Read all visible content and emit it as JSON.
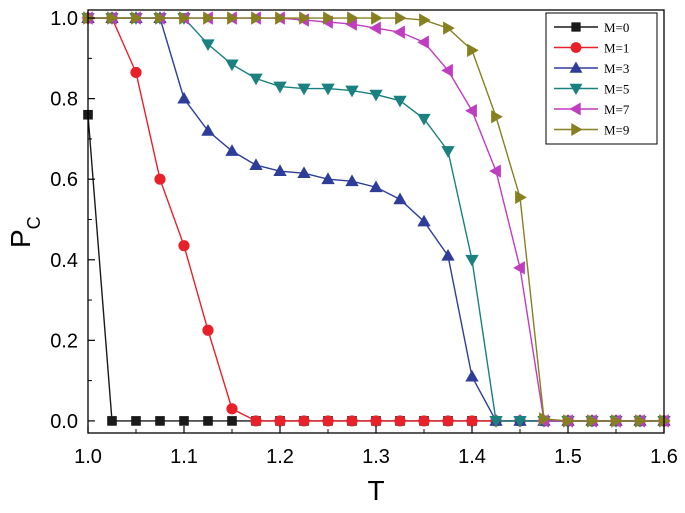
{
  "chart_data": {
    "type": "line",
    "xlabel": "T",
    "ylabel": "P",
    "ylabel_sub": "C",
    "xlim": [
      1.0,
      1.6
    ],
    "ylim": [
      -0.03,
      1.02
    ],
    "x_ticks": [
      1.0,
      1.1,
      1.2,
      1.3,
      1.4,
      1.5,
      1.6
    ],
    "x_tick_labels": [
      "1.0",
      "1.1",
      "1.2",
      "1.3",
      "1.4",
      "1.5",
      "1.6"
    ],
    "y_ticks": [
      0.0,
      0.2,
      0.4,
      0.6,
      0.8,
      1.0
    ],
    "y_tick_labels": [
      "0.0",
      "0.2",
      "0.4",
      "0.6",
      "0.8",
      "1.0"
    ],
    "grid": false,
    "legend_position": "top-right",
    "x": [
      1.0,
      1.025,
      1.05,
      1.075,
      1.1,
      1.125,
      1.15,
      1.175,
      1.2,
      1.225,
      1.25,
      1.275,
      1.3,
      1.325,
      1.35,
      1.375,
      1.4,
      1.425,
      1.45,
      1.475,
      1.5,
      1.525,
      1.55,
      1.575,
      1.6
    ],
    "series": [
      {
        "name": "M=0",
        "color": "#1a1a1a",
        "marker": "square",
        "values": [
          0.76,
          0.0,
          0.0,
          0.0,
          0.0,
          0.0,
          0.0,
          0.0,
          0.0,
          0.0,
          0.0,
          0.0,
          0.0,
          0.0,
          0.0,
          0.0,
          0.0,
          0.0,
          0.0,
          0.0,
          0.0,
          0.0,
          0.0,
          0.0,
          0.0
        ]
      },
      {
        "name": "M=1",
        "color": "#e8202a",
        "marker": "circle",
        "values": [
          1.0,
          1.0,
          0.865,
          0.6,
          0.435,
          0.225,
          0.03,
          0.0,
          0.0,
          0.0,
          0.0,
          0.0,
          0.0,
          0.0,
          0.0,
          0.0,
          0.0,
          0.0,
          0.0,
          0.0,
          0.0,
          0.0,
          0.0,
          0.0,
          0.0
        ]
      },
      {
        "name": "M=3",
        "color": "#2e3d99",
        "marker": "triangle-up",
        "values": [
          1.0,
          1.0,
          1.0,
          1.0,
          0.8,
          0.72,
          0.67,
          0.635,
          0.62,
          0.615,
          0.6,
          0.595,
          0.58,
          0.55,
          0.495,
          0.41,
          0.11,
          0.0,
          0.0,
          0.0,
          0.0,
          0.0,
          0.0,
          0.0,
          0.0
        ]
      },
      {
        "name": "M=5",
        "color": "#1a8080",
        "marker": "triangle-down",
        "values": [
          1.0,
          1.0,
          1.0,
          1.0,
          1.0,
          0.935,
          0.885,
          0.85,
          0.83,
          0.825,
          0.825,
          0.82,
          0.81,
          0.795,
          0.75,
          0.67,
          0.4,
          0.0,
          0.0,
          0.0,
          0.0,
          0.0,
          0.0,
          0.0,
          0.0
        ]
      },
      {
        "name": "M=7",
        "color": "#c03cc0",
        "marker": "triangle-left",
        "values": [
          1.0,
          1.0,
          1.0,
          1.0,
          1.0,
          1.0,
          1.0,
          1.0,
          1.0,
          0.995,
          0.99,
          0.985,
          0.975,
          0.965,
          0.94,
          0.87,
          0.77,
          0.62,
          0.38,
          0.0,
          0.0,
          0.0,
          0.0,
          0.0,
          0.0
        ]
      },
      {
        "name": "M=9",
        "color": "#868020",
        "marker": "triangle-right",
        "values": [
          1.0,
          1.0,
          1.0,
          1.0,
          1.0,
          1.0,
          1.0,
          1.0,
          1.0,
          1.0,
          1.0,
          1.0,
          1.0,
          1.0,
          0.995,
          0.975,
          0.92,
          0.755,
          0.555,
          0.005,
          0.0,
          0.0,
          0.0,
          0.0,
          0.0
        ]
      }
    ]
  }
}
